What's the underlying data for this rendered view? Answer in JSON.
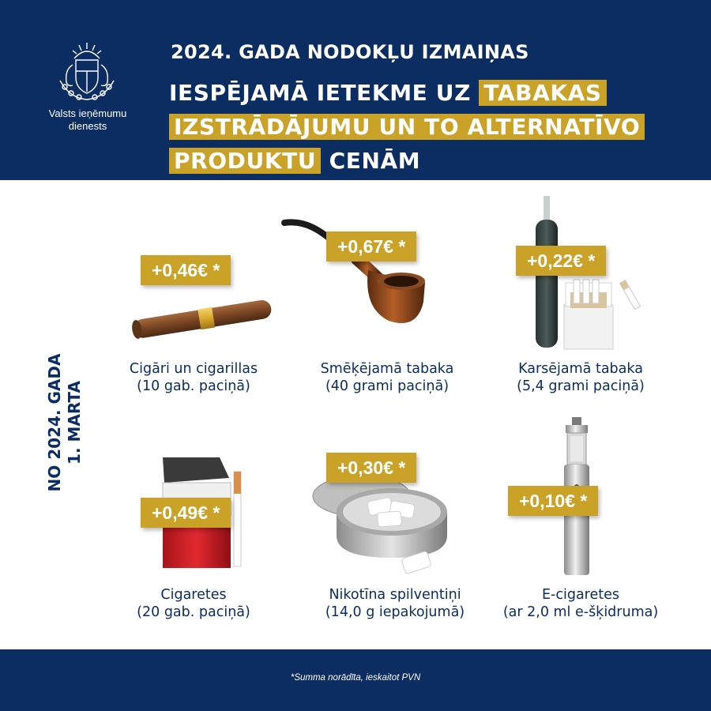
{
  "header": {
    "org_name_line1": "Valsts ieņēmumu",
    "org_name_line2": "dienests",
    "title": "2024. GADA NODOKĻU IZMAIŅAS",
    "subtitle": {
      "part1": "IESPĒJAMĀ IETEKME UZ",
      "hl1": "TABAKAS",
      "hl2": "IZSTRĀDĀJUMU UN TO ALTERNATĪVO",
      "hl3": "PRODUKTU",
      "part2": "CENĀM"
    }
  },
  "side_label": {
    "line1": "NO 2024. GADA",
    "line2": "1. MARTA"
  },
  "products": [
    {
      "price": "+0,46€ *",
      "name": "Cigāri un cigarillas",
      "detail": "(10 gab. paciņā)",
      "icon": "cigar-icon"
    },
    {
      "price": "+0,67€ *",
      "name": "Smēķējamā tabaka",
      "detail": "(40 grami paciņā)",
      "icon": "pipe-icon"
    },
    {
      "price": "+0,22€ *",
      "name": "Karsējamā tabaka",
      "detail": "(5,4 grami paciņā)",
      "icon": "heated-tobacco-icon"
    },
    {
      "price": "+0,49€ *",
      "name": "Cigaretes",
      "detail": "(20 gab. paciņā)",
      "icon": "cigarette-pack-icon"
    },
    {
      "price": "+0,30€ *",
      "name": "Nikotīna spilventiņi",
      "detail": "(14,0 g iepakojumā)",
      "icon": "nicotine-pouch-icon"
    },
    {
      "price": "+0,10€ *",
      "name": "E-cigaretes",
      "detail": "(ar 2,0 ml e-šķidruma)",
      "icon": "e-cigarette-icon"
    }
  ],
  "footer": {
    "note": "*Summa norādīta, ieskaitot PVN"
  },
  "colors": {
    "navy": "#0c2d61",
    "gold": "#c9a227",
    "white": "#ffffff"
  }
}
